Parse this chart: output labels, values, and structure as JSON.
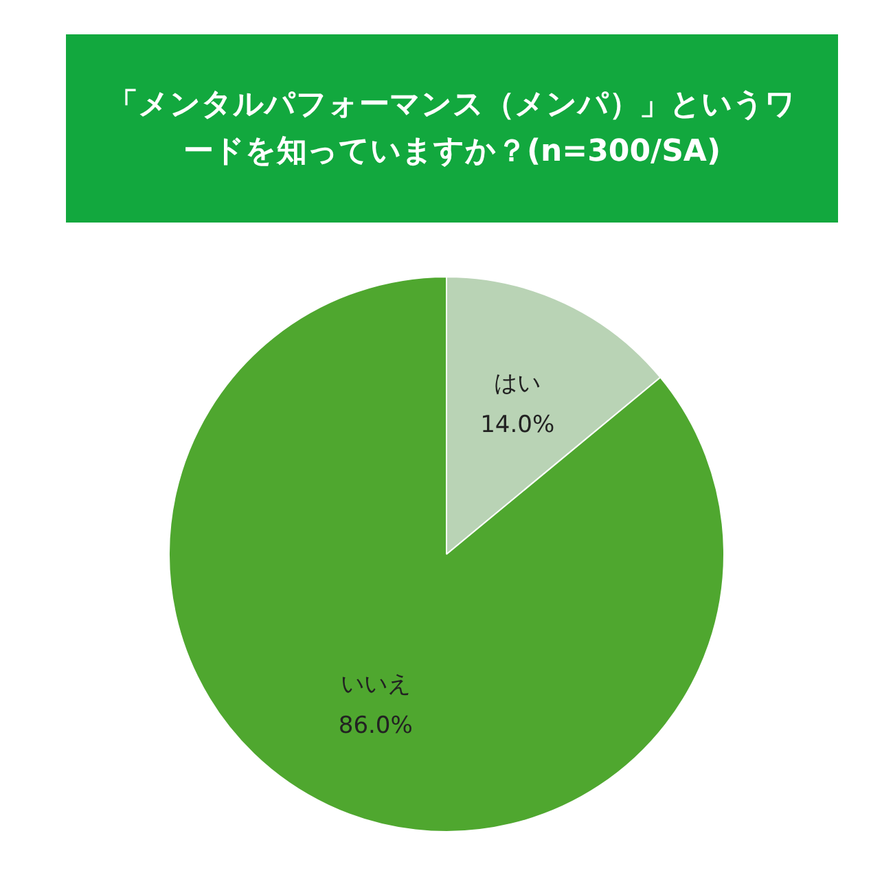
{
  "chart_data": {
    "type": "pie",
    "title": "「メンタルパフォーマンス（メンパ）」というワードを知っていますか？(n=300/SA)",
    "categories": [
      "はい",
      "いいえ"
    ],
    "values": [
      14,
      86
    ],
    "value_labels": [
      "14.0%",
      "86.0%"
    ],
    "colors": [
      "#b9d3b5",
      "#4fa72f"
    ],
    "legend": false
  }
}
